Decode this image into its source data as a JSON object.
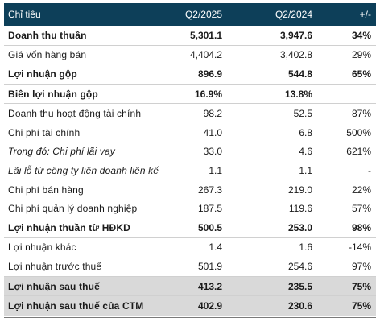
{
  "table": {
    "headers": [
      "Chỉ tiêu",
      "Q2/2025",
      "Q2/2024",
      "+/-"
    ],
    "rows": [
      {
        "label": "Doanh thu thuần",
        "q2_2025": "5,301.1",
        "q2_2024": "3,947.6",
        "change": "34%",
        "bold": true,
        "italic": false,
        "shaded": false
      },
      {
        "label": "Giá vốn hàng bán",
        "q2_2025": "4,404.2",
        "q2_2024": "3,402.8",
        "change": "29%",
        "bold": false,
        "italic": false,
        "shaded": false
      },
      {
        "label": "Lợi nhuận gộp",
        "q2_2025": "896.9",
        "q2_2024": "544.8",
        "change": "65%",
        "bold": true,
        "italic": false,
        "shaded": false
      },
      {
        "label": "Biên lợi nhuận gộp",
        "q2_2025": "16.9%",
        "q2_2024": "13.8%",
        "change": "",
        "bold": true,
        "italic": false,
        "shaded": false
      },
      {
        "label": "Doanh thu hoạt động tài chính",
        "q2_2025": "98.2",
        "q2_2024": "52.5",
        "change": "87%",
        "bold": false,
        "italic": false,
        "shaded": false
      },
      {
        "label": "Chi phí tài chính",
        "q2_2025": "41.0",
        "q2_2024": "6.8",
        "change": "500%",
        "bold": false,
        "italic": false,
        "shaded": false
      },
      {
        "label": "Trong đó: Chi phí lãi vay",
        "q2_2025": "33.0",
        "q2_2024": "4.6",
        "change": "621%",
        "bold": false,
        "italic": true,
        "shaded": false
      },
      {
        "label": "Lãi lỗ từ công ty liên doanh liên kết",
        "q2_2025": "1.1",
        "q2_2024": "1.1",
        "change": "-",
        "bold": false,
        "italic": true,
        "shaded": false
      },
      {
        "label": "Chi phí bán hàng",
        "q2_2025": "267.3",
        "q2_2024": "219.0",
        "change": "22%",
        "bold": false,
        "italic": false,
        "shaded": false
      },
      {
        "label": "Chi phí quản lý doanh nghiệp",
        "q2_2025": "187.5",
        "q2_2024": "119.6",
        "change": "57%",
        "bold": false,
        "italic": false,
        "shaded": false
      },
      {
        "label": "Lợi nhuận thuần từ HĐKD",
        "q2_2025": "500.5",
        "q2_2024": "253.0",
        "change": "98%",
        "bold": true,
        "italic": false,
        "shaded": false
      },
      {
        "label": "Lợi nhuận khác",
        "q2_2025": "1.4",
        "q2_2024": "1.6",
        "change": "-14%",
        "bold": false,
        "italic": false,
        "shaded": false
      },
      {
        "label": "Lợi nhuận trước thuế",
        "q2_2025": "501.9",
        "q2_2024": "254.6",
        "change": "97%",
        "bold": false,
        "italic": false,
        "shaded": false
      },
      {
        "label": "Lợi nhuận sau thuế",
        "q2_2025": "413.2",
        "q2_2024": "235.5",
        "change": "75%",
        "bold": true,
        "italic": false,
        "shaded": true
      },
      {
        "label": "Lợi nhuận sau thuế của CTM",
        "q2_2025": "402.9",
        "q2_2024": "230.6",
        "change": "75%",
        "bold": true,
        "italic": false,
        "shaded": true
      }
    ]
  },
  "colors": {
    "header_bg": "#0d3f59",
    "header_text": "#ffffff",
    "shade_bg": "#d9d9d9",
    "row_rule": "#d0d0d0"
  }
}
